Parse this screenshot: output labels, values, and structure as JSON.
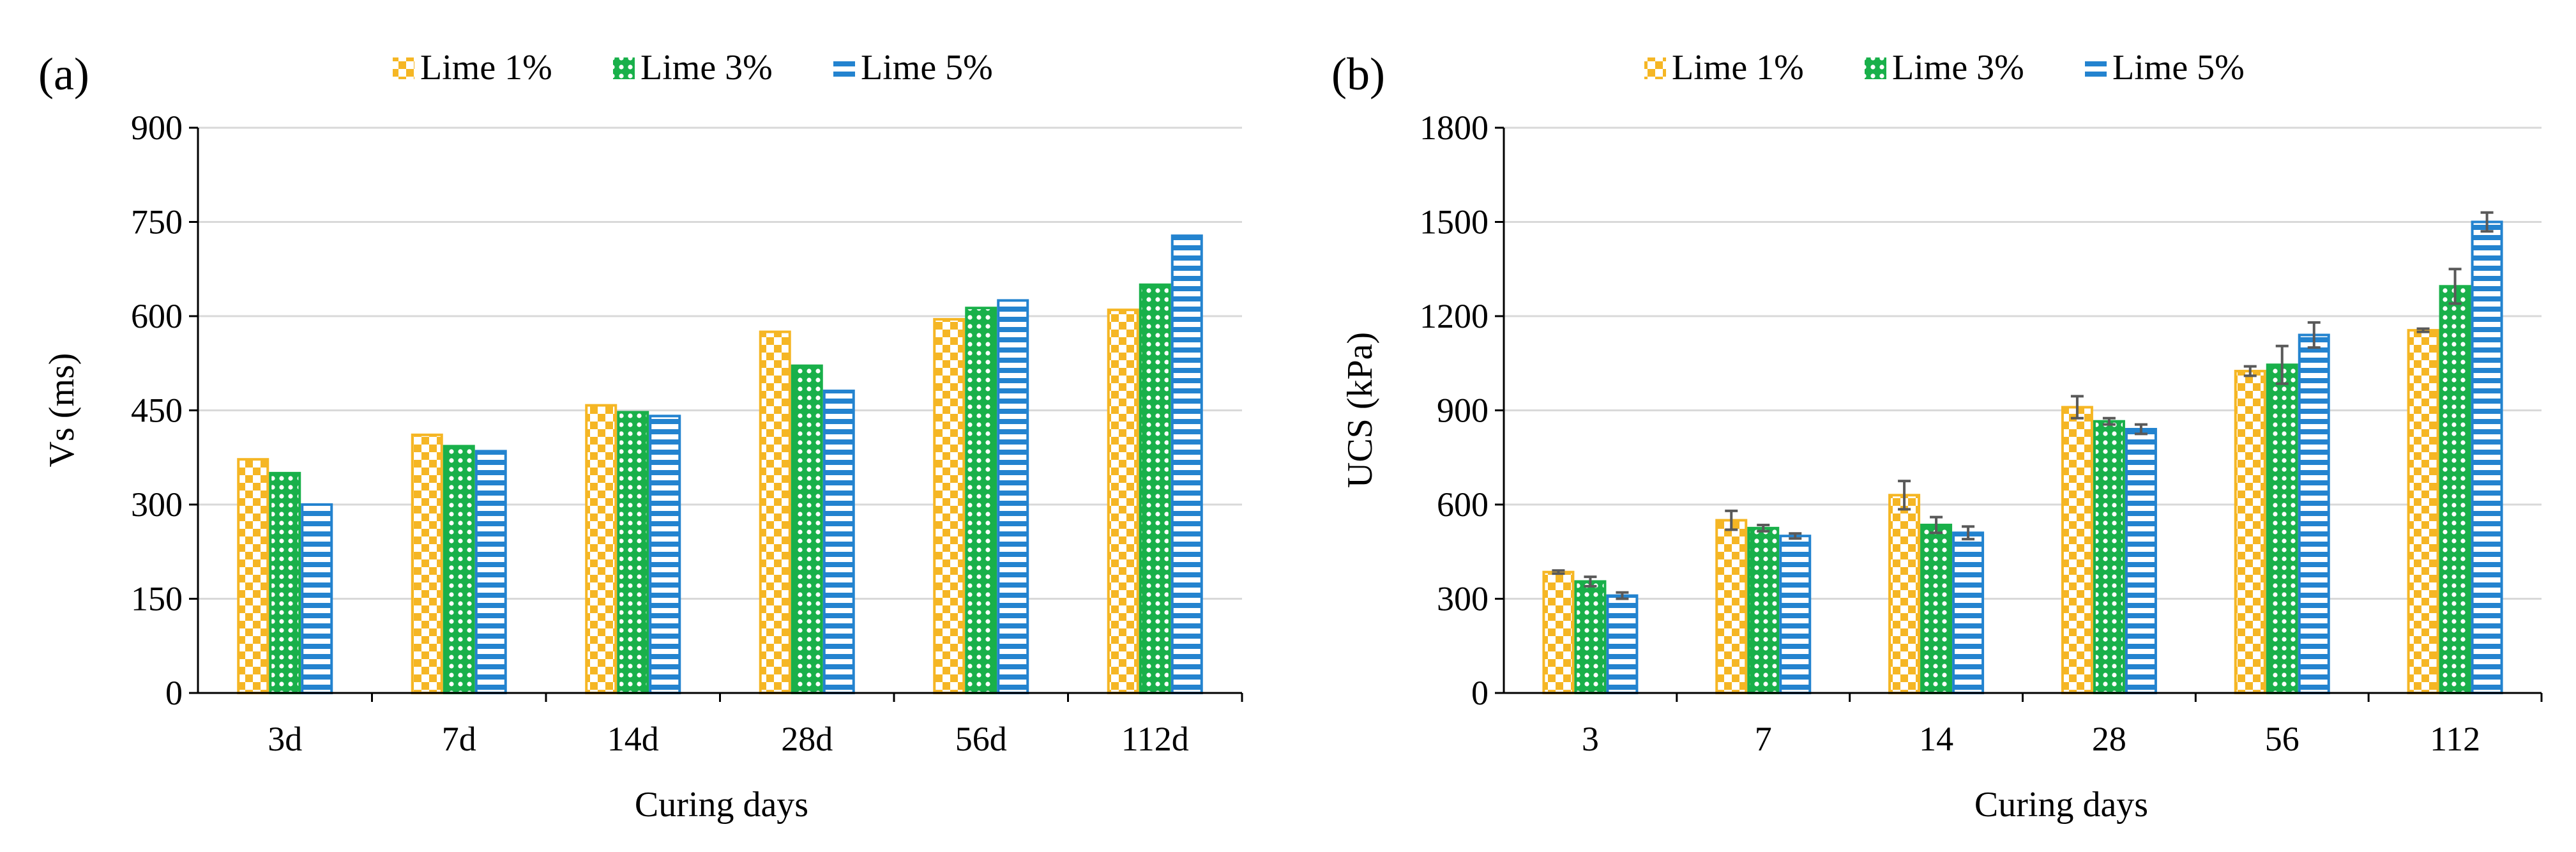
{
  "colors": {
    "lime1": "#f5b624",
    "lime3": "#19b04a",
    "lime5": "#2383cf",
    "grid": "#d9d9d9",
    "errorbar": "#595959"
  },
  "chart_data": [
    {
      "type": "bar",
      "panel_label": "(a)",
      "categories": [
        "3d",
        "7d",
        "14d",
        "28d",
        "56d",
        "112d"
      ],
      "series": [
        {
          "name": "Lime 1%",
          "pattern": "checker",
          "values": [
            372,
            411,
            458,
            575,
            595,
            610
          ]
        },
        {
          "name": "Lime 3%",
          "pattern": "dots",
          "values": [
            350,
            393,
            447,
            521,
            613,
            650
          ]
        },
        {
          "name": "Lime 5%",
          "pattern": "hstripes",
          "values": [
            300,
            385,
            441,
            481,
            625,
            728
          ]
        }
      ],
      "xlabel": "Curing days",
      "ylabel": "Vs (ms)",
      "ylim": [
        0,
        900
      ],
      "yticks": [
        "0",
        "150",
        "300",
        "450",
        "600",
        "750",
        "900"
      ],
      "grid": true,
      "legend": "top-center"
    },
    {
      "type": "bar",
      "panel_label": "(b)",
      "categories": [
        "3",
        "7",
        "14",
        "28",
        "56",
        "112"
      ],
      "series": [
        {
          "name": "Lime 1%",
          "pattern": "checker",
          "values": [
            385,
            550,
            630,
            910,
            1025,
            1155
          ],
          "errors": [
            5,
            30,
            45,
            35,
            15,
            5
          ]
        },
        {
          "name": "Lime 3%",
          "pattern": "dots",
          "values": [
            355,
            525,
            535,
            865,
            1045,
            1295
          ],
          "errors": [
            15,
            10,
            25,
            10,
            60,
            55
          ]
        },
        {
          "name": "Lime 5%",
          "pattern": "hstripes",
          "values": [
            310,
            500,
            510,
            840,
            1140,
            1500
          ],
          "errors": [
            10,
            8,
            20,
            15,
            40,
            30
          ]
        }
      ],
      "xlabel": "Curing days",
      "ylabel": "UCS (kPa)",
      "ylim": [
        0,
        1800
      ],
      "yticks": [
        "0",
        "300",
        "600",
        "900",
        "1200",
        "1500",
        "1800"
      ],
      "grid": true,
      "legend": "top-center"
    }
  ]
}
